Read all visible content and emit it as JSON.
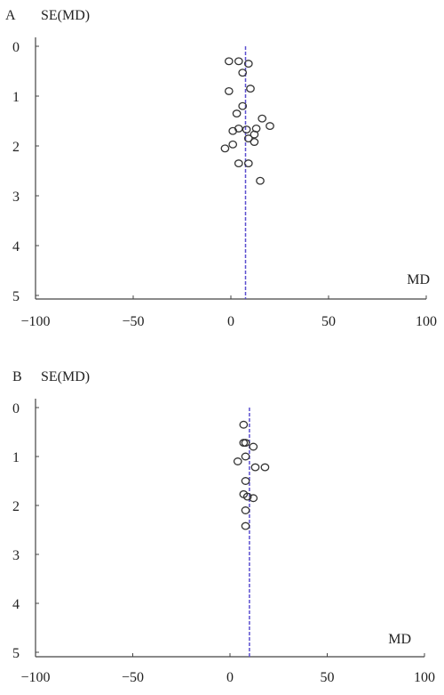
{
  "chart_data": [
    {
      "type": "scatter",
      "panel_label": "A",
      "ylabel": "SE(MD)",
      "xlabel": "MD",
      "xlim": [
        -100,
        100
      ],
      "ylim": [
        0,
        5
      ],
      "y_inverted": true,
      "x_ticks": [
        "−100",
        "−50",
        "0",
        "50",
        "100"
      ],
      "y_ticks": [
        "0",
        "1",
        "2",
        "3",
        "4",
        "5"
      ],
      "reference_line_x": 7.5,
      "marker": "open-circle",
      "colors": {
        "points": "#333333",
        "reference_line": "#5a4fcf",
        "axes": "#444444"
      },
      "points": [
        {
          "x": -1,
          "y": 0.3
        },
        {
          "x": 4,
          "y": 0.3
        },
        {
          "x": 9,
          "y": 0.35
        },
        {
          "x": 6,
          "y": 0.53
        },
        {
          "x": -1,
          "y": 0.9
        },
        {
          "x": 10,
          "y": 0.85
        },
        {
          "x": 6,
          "y": 1.2
        },
        {
          "x": 3,
          "y": 1.35
        },
        {
          "x": 16,
          "y": 1.45
        },
        {
          "x": 20,
          "y": 1.6
        },
        {
          "x": 13,
          "y": 1.65
        },
        {
          "x": 4,
          "y": 1.65
        },
        {
          "x": 8,
          "y": 1.67
        },
        {
          "x": 1,
          "y": 1.7
        },
        {
          "x": 12,
          "y": 1.77
        },
        {
          "x": 9,
          "y": 1.85
        },
        {
          "x": 12,
          "y": 1.92
        },
        {
          "x": 1,
          "y": 1.97
        },
        {
          "x": -3,
          "y": 2.05
        },
        {
          "x": 4,
          "y": 2.35
        },
        {
          "x": 9,
          "y": 2.35
        },
        {
          "x": 15,
          "y": 2.7
        }
      ]
    },
    {
      "type": "scatter",
      "panel_label": "B",
      "ylabel": "SE(MD)",
      "xlabel": "MD",
      "xlim": [
        -100,
        100
      ],
      "ylim": [
        0,
        5
      ],
      "y_inverted": true,
      "x_ticks": [
        "−100",
        "−50",
        "0",
        "50",
        "100"
      ],
      "y_ticks": [
        "0",
        "1",
        "2",
        "3",
        "4",
        "5"
      ],
      "reference_line_x": 10,
      "marker": "open-circle",
      "colors": {
        "points": "#333333",
        "reference_line": "#5a4fcf",
        "axes": "#444444"
      },
      "points": [
        {
          "x": 7,
          "y": 0.35
        },
        {
          "x": 7,
          "y": 0.72
        },
        {
          "x": 8,
          "y": 0.72
        },
        {
          "x": 12,
          "y": 0.8
        },
        {
          "x": 8,
          "y": 1.0
        },
        {
          "x": 4,
          "y": 1.1
        },
        {
          "x": 13,
          "y": 1.22
        },
        {
          "x": 18,
          "y": 1.22
        },
        {
          "x": 8,
          "y": 1.5
        },
        {
          "x": 7,
          "y": 1.77
        },
        {
          "x": 9,
          "y": 1.82
        },
        {
          "x": 12,
          "y": 1.85
        },
        {
          "x": 8,
          "y": 2.1
        },
        {
          "x": 8,
          "y": 2.42
        }
      ]
    }
  ]
}
